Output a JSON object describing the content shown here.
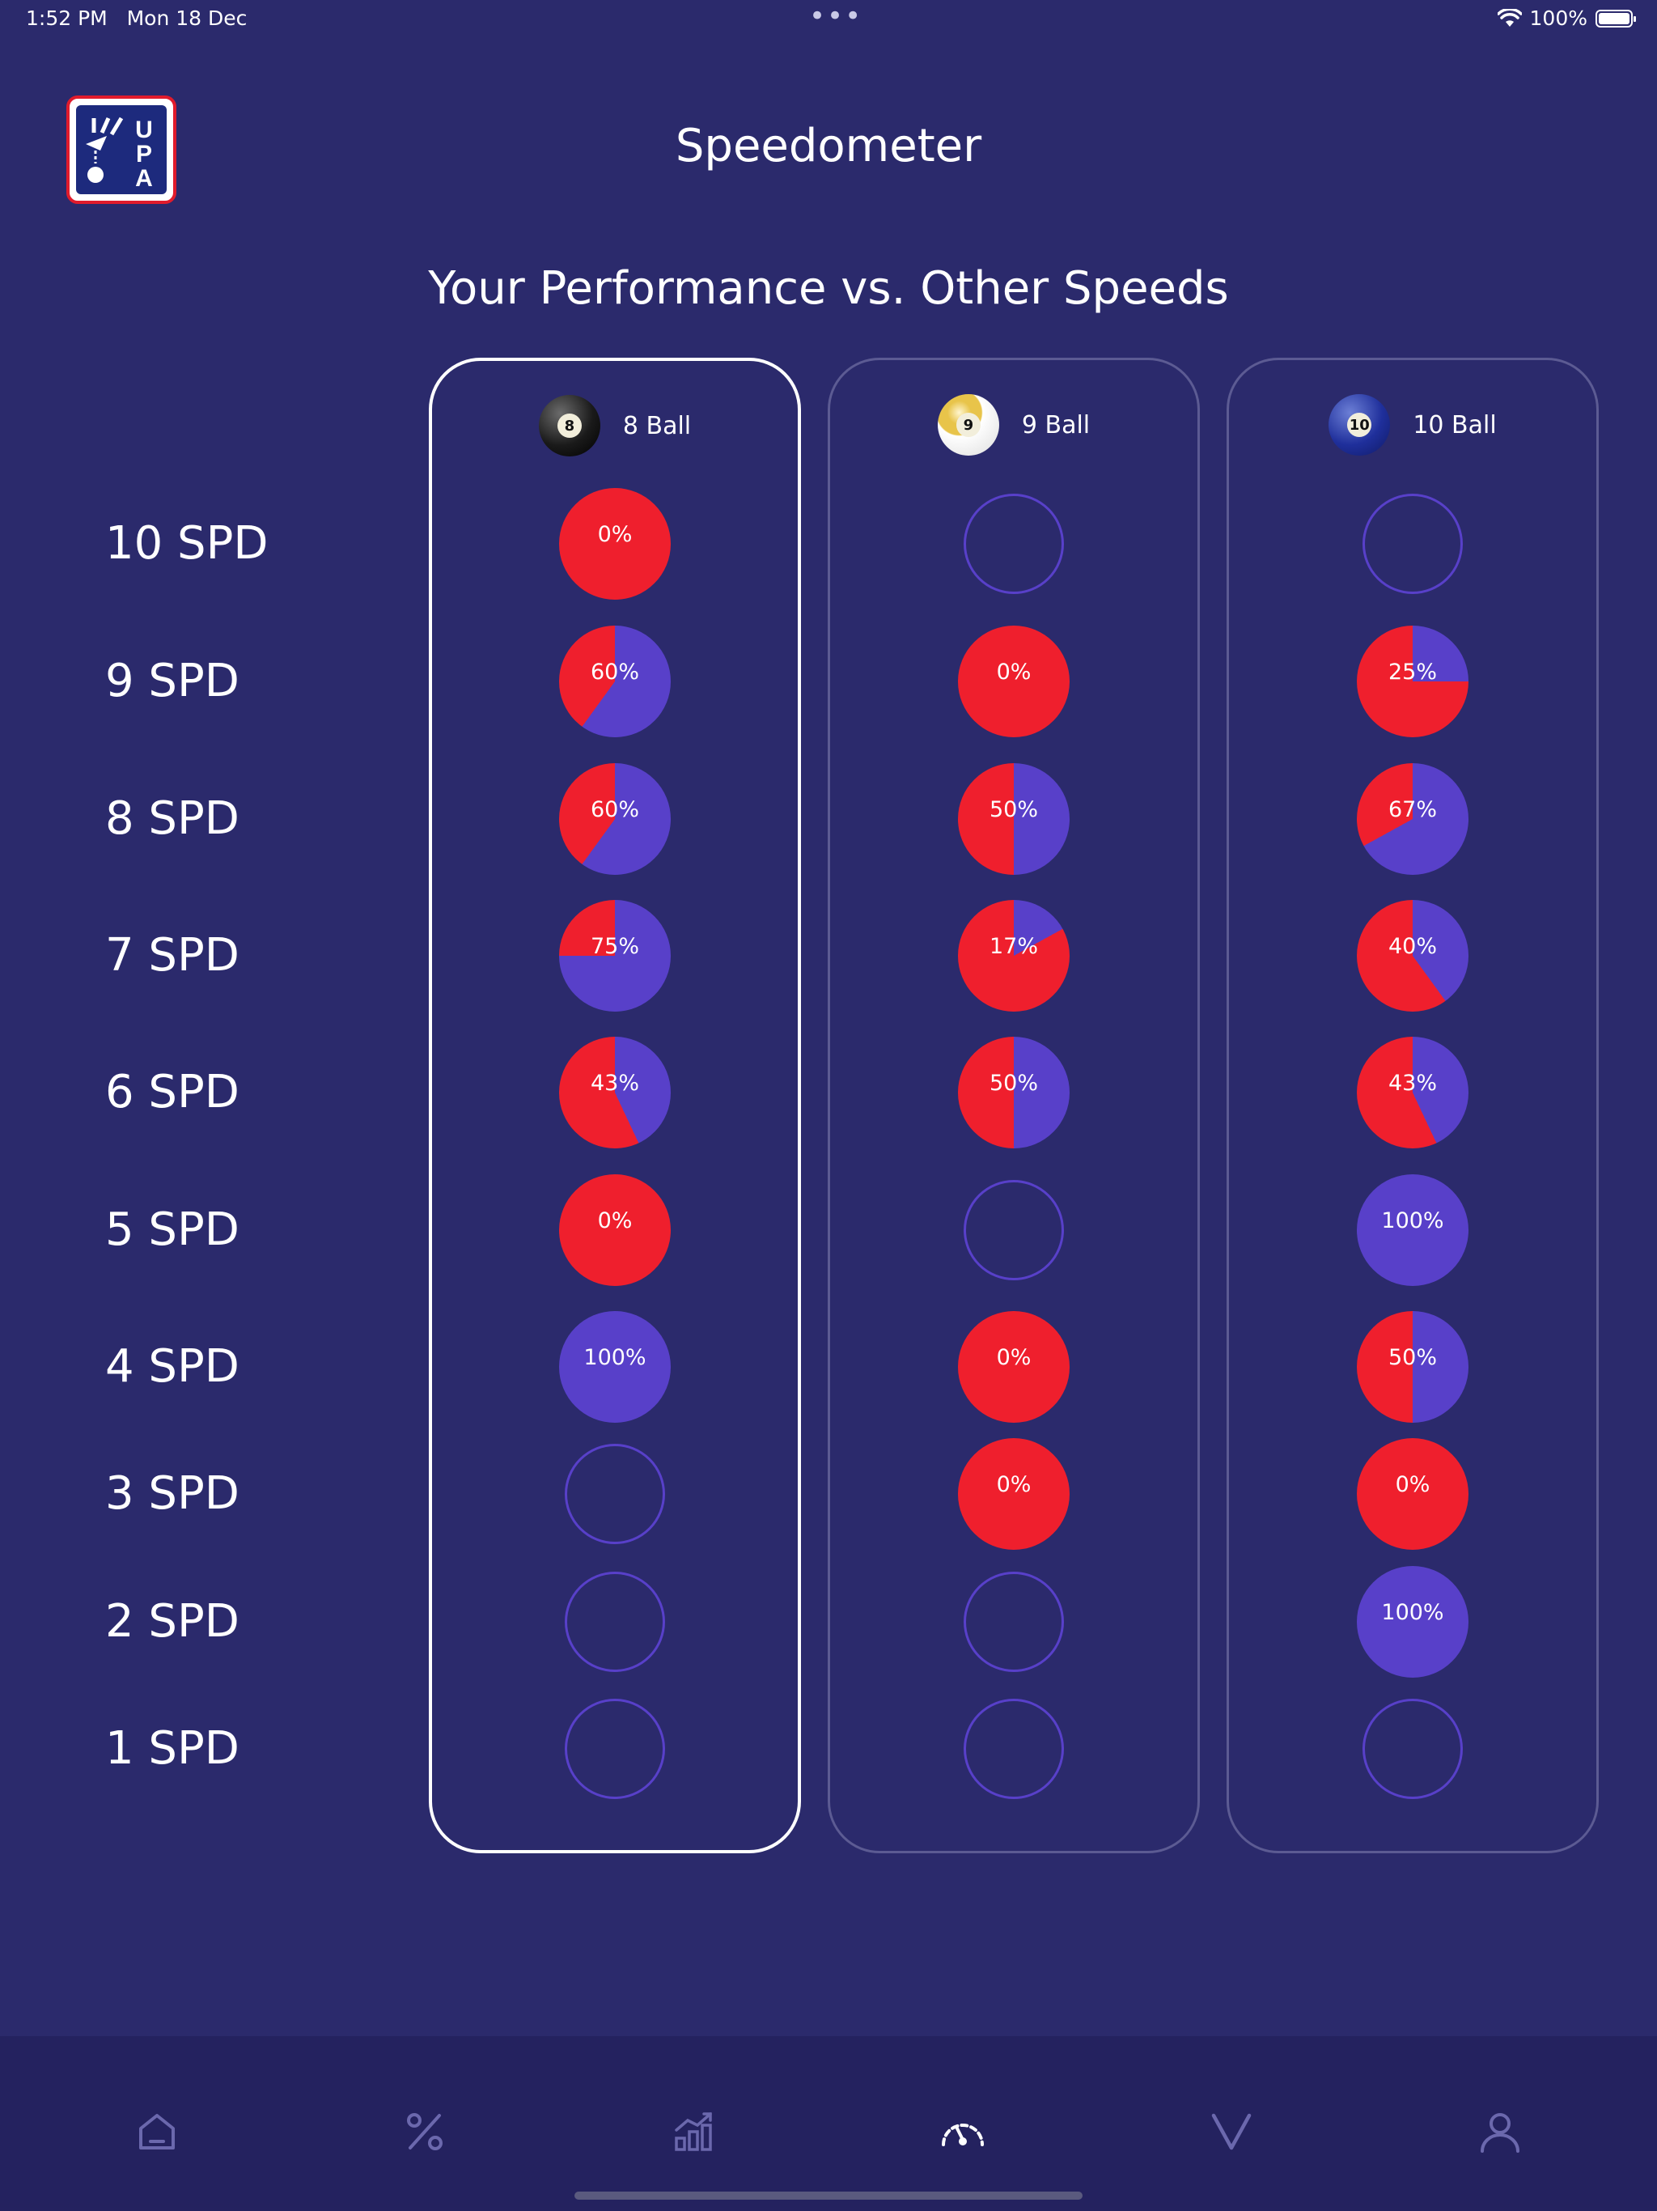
{
  "status_bar": {
    "time": "1:52 PM",
    "date": "Mon 18 Dec",
    "battery": "100%",
    "dots": "•••"
  },
  "header": {
    "title": "Speedometer",
    "logo": "UPA"
  },
  "subtitle": "Your Performance vs. Other Speeds",
  "colors": {
    "background": "#2b2a6c",
    "red": "#ef1f2d",
    "purple": "#5840c9",
    "nav_bg": "#24225f"
  },
  "rows": [
    "10 SPD",
    "9 SPD",
    "8 SPD",
    "7 SPD",
    "6 SPD",
    "5 SPD",
    "4 SPD",
    "3 SPD",
    "2 SPD",
    "1 SPD"
  ],
  "columns": [
    {
      "label": "8 Ball",
      "ball_number": "8",
      "selected": true,
      "values": [
        "0%",
        "60%",
        "60%",
        "75%",
        "43%",
        "0%",
        "100%",
        null,
        null,
        null
      ]
    },
    {
      "label": "9 Ball",
      "ball_number": "9",
      "selected": false,
      "values": [
        null,
        "0%",
        "50%",
        "17%",
        "50%",
        null,
        "0%",
        "0%",
        null,
        null
      ]
    },
    {
      "label": "10 Ball",
      "ball_number": "10",
      "selected": false,
      "values": [
        null,
        "25%",
        "67%",
        "40%",
        "43%",
        "100%",
        "50%",
        "0%",
        "100%",
        null
      ]
    }
  ],
  "nav": [
    {
      "name": "home",
      "active": false
    },
    {
      "name": "percent",
      "active": false
    },
    {
      "name": "stats",
      "active": false
    },
    {
      "name": "speedometer",
      "active": true
    },
    {
      "name": "check",
      "active": false
    },
    {
      "name": "profile",
      "active": false
    }
  ]
}
